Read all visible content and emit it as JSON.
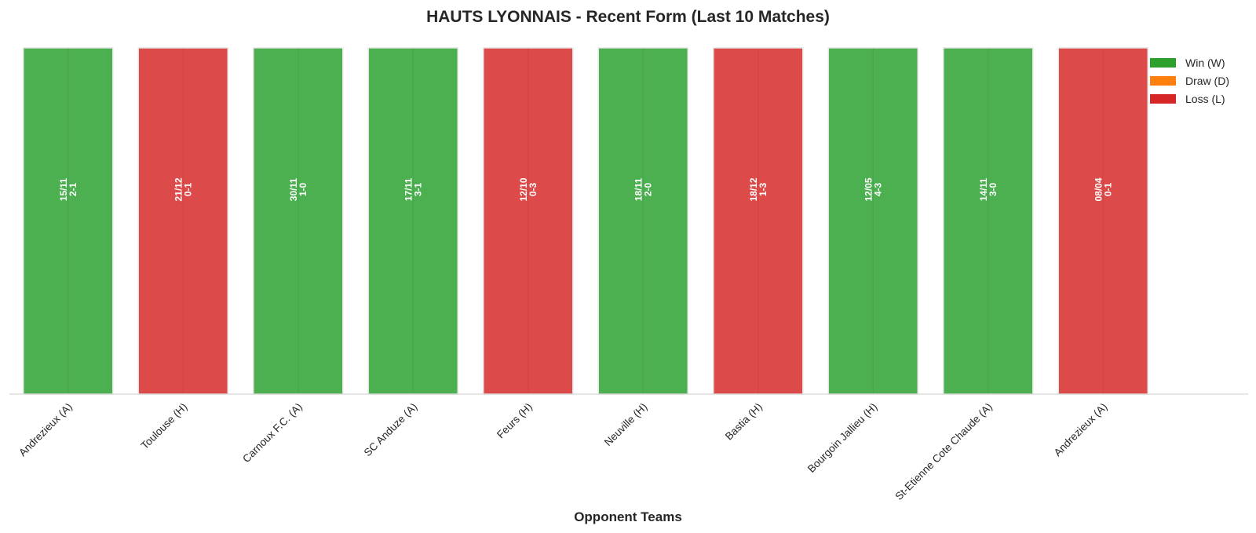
{
  "chart_data": {
    "type": "bar",
    "title": "HAUTS LYONNAIS - Recent Form (Last 10 Matches)",
    "xlabel": "Opponent Teams",
    "ylabel": "",
    "ylim": [
      0,
      1
    ],
    "grid": false,
    "categories": [
      "Andrezieux (A)",
      "Toulouse (H)",
      "Carnoux F.C. (A)",
      "SC Anduze (A)",
      "Feurs (H)",
      "Neuville (H)",
      "Bastia (H)",
      "Bourgoin Jallieu (H)",
      "St-Etienne Cote Chaude (A)",
      "Andrezieux (A)"
    ],
    "values": [
      1,
      1,
      1,
      1,
      1,
      1,
      1,
      1,
      1,
      1
    ],
    "results": [
      "W",
      "L",
      "W",
      "W",
      "L",
      "W",
      "L",
      "W",
      "W",
      "L"
    ],
    "dates": [
      "15/11",
      "21/12",
      "30/11",
      "17/11",
      "12/10",
      "18/11",
      "18/12",
      "12/05",
      "14/11",
      "08/04"
    ],
    "scores": [
      "2-1",
      "0-1",
      "1-0",
      "3-1",
      "0-3",
      "2-0",
      "1-3",
      "4-3",
      "3-0",
      "0-1"
    ],
    "legend": {
      "placement": "top-right",
      "entries": [
        {
          "key": "W",
          "label": "Win (W)",
          "color": "#2ca02c"
        },
        {
          "key": "D",
          "label": "Draw (D)",
          "color": "#ff7f0e"
        },
        {
          "key": "L",
          "label": "Loss (L)",
          "color": "#d62728"
        }
      ]
    },
    "bar_colors": {
      "W": "#4caf50",
      "D": "#ff9933",
      "L": "#dd4a4a"
    },
    "axis_color": "#cccccc"
  }
}
